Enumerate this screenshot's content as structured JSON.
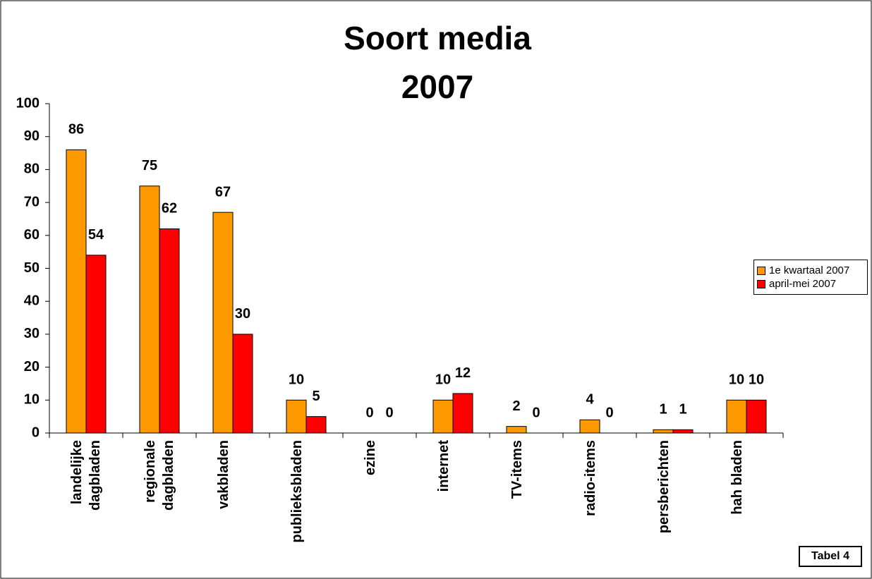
{
  "chart_data": {
    "type": "bar",
    "title": [
      "Soort media",
      "2007"
    ],
    "categories": [
      "landelijke dagbladen",
      "regionale dagbladen",
      "vakbladen",
      "publieksbladen",
      "ezine",
      "internet",
      "TV-items",
      "radio-items",
      "persberichten",
      "hah bladen"
    ],
    "series": [
      {
        "name": "1e kwartaal 2007",
        "color": "#ff9900",
        "values": [
          86,
          75,
          67,
          10,
          0,
          10,
          2,
          4,
          1,
          10
        ]
      },
      {
        "name": "april-mei 2007",
        "color": "#ff0000",
        "values": [
          54,
          62,
          30,
          5,
          0,
          12,
          0,
          0,
          1,
          10
        ]
      }
    ],
    "ylim": [
      0,
      100
    ],
    "yticks": [
      0,
      10,
      20,
      30,
      40,
      50,
      60,
      70,
      80,
      90,
      100
    ],
    "legend": "right",
    "annotation": "Tabel 4"
  }
}
